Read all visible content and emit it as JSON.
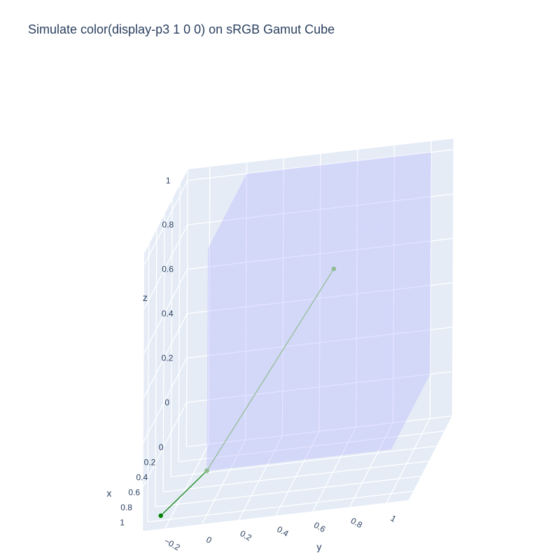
{
  "chart_data": {
    "type": "scatter3d",
    "title": "Simulate color(display-p3 1 0 0) on sRGB Gamut Cube",
    "axes": {
      "x": {
        "label": "x",
        "ticks": [
          "0",
          "0.2",
          "0.4",
          "0.6",
          "0.8",
          "1"
        ]
      },
      "y": {
        "label": "y",
        "ticks": [
          "−0.2",
          "0",
          "0.2",
          "0.4",
          "0.6",
          "0.8",
          "1"
        ]
      },
      "z": {
        "label": "z",
        "ticks": [
          "0",
          "0.2",
          "0.4",
          "0.6",
          "0.8",
          "1"
        ]
      }
    },
    "cube": {
      "name": "sRGB gamut",
      "range": [
        0,
        1
      ],
      "color": "#b3b3ff",
      "opacity": 0.35
    },
    "series": [
      {
        "color": "#008000",
        "points": [
          {
            "x": 1.09,
            "y": -0.23,
            "z": -0.15
          },
          {
            "x": 1.0,
            "y": 0.0,
            "z": 0.0
          }
        ]
      },
      {
        "color": "#8fbc8f",
        "points": [
          {
            "x": 1.0,
            "y": 0.0,
            "z": 0.0
          },
          {
            "x": 0.36,
            "y": 0.55,
            "z": 0.64
          }
        ]
      }
    ],
    "grid": true,
    "background": "#e5ecf6",
    "grid_color": "#ffffff"
  }
}
